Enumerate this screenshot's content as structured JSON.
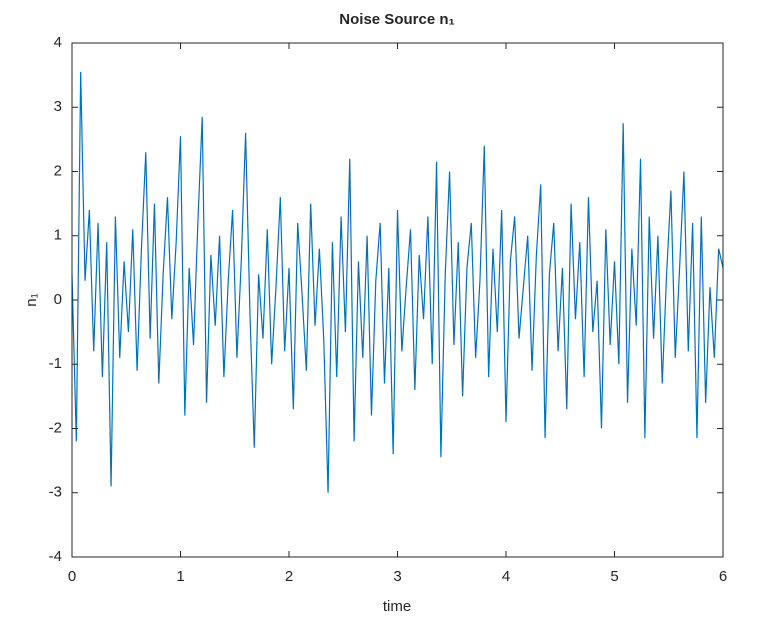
{
  "chart_data": {
    "type": "line",
    "title": "Noise Source n₁",
    "xlabel": "time",
    "ylabel": "n₁",
    "xlim": [
      0,
      6
    ],
    "ylim": [
      -4,
      4
    ],
    "xticks": [
      0,
      1,
      2,
      3,
      4,
      5,
      6
    ],
    "yticks": [
      -4,
      -3,
      -2,
      -1,
      0,
      1,
      2,
      3,
      4
    ],
    "x": [
      0,
      0.04,
      0.08,
      0.12,
      0.16,
      0.2,
      0.24,
      0.28,
      0.32,
      0.36,
      0.4,
      0.44,
      0.48,
      0.52,
      0.56,
      0.6,
      0.64,
      0.68,
      0.72,
      0.76,
      0.8,
      0.84,
      0.88,
      0.92,
      0.96,
      1,
      1.04,
      1.08,
      1.12,
      1.16,
      1.2,
      1.24,
      1.28,
      1.32,
      1.36,
      1.4,
      1.44,
      1.48,
      1.52,
      1.56,
      1.6,
      1.64,
      1.68,
      1.72,
      1.76,
      1.8,
      1.84,
      1.88,
      1.92,
      1.96,
      2,
      2.04,
      2.08,
      2.12,
      2.16,
      2.2,
      2.24,
      2.28,
      2.32,
      2.36,
      2.4,
      2.44,
      2.48,
      2.52,
      2.56,
      2.6,
      2.64,
      2.68,
      2.72,
      2.76,
      2.8,
      2.84,
      2.88,
      2.92,
      2.96,
      3,
      3.04,
      3.08,
      3.12,
      3.16,
      3.2,
      3.24,
      3.28,
      3.32,
      3.36,
      3.4,
      3.44,
      3.48,
      3.52,
      3.56,
      3.6,
      3.64,
      3.68,
      3.72,
      3.76,
      3.8,
      3.84,
      3.88,
      3.92,
      3.96,
      4,
      4.04,
      4.08,
      4.12,
      4.16,
      4.2,
      4.24,
      4.28,
      4.32,
      4.36,
      4.4,
      4.44,
      4.48,
      4.52,
      4.56,
      4.6,
      4.64,
      4.68,
      4.72,
      4.76,
      4.8,
      4.84,
      4.88,
      4.92,
      4.96,
      5,
      5.04,
      5.08,
      5.12,
      5.16,
      5.2,
      5.24,
      5.28,
      5.32,
      5.36,
      5.4,
      5.44,
      5.48,
      5.52,
      5.56,
      5.6,
      5.64,
      5.68,
      5.72,
      5.76,
      5.8,
      5.84,
      5.88,
      5.92,
      5.96,
      6
    ],
    "series": [
      {
        "color": "#0072bd",
        "values": [
          0.4,
          -2.2,
          3.55,
          0.3,
          1.4,
          -0.8,
          1.2,
          -1.2,
          0.9,
          -2.9,
          1.3,
          -0.9,
          0.6,
          -0.5,
          1.1,
          -1.1,
          0.8,
          2.3,
          -0.6,
          1.5,
          -1.3,
          0.4,
          1.6,
          -0.3,
          0.9,
          2.55,
          -1.8,
          0.5,
          -0.7,
          1.2,
          2.85,
          -1.6,
          0.7,
          -0.4,
          1.0,
          -1.2,
          0.3,
          1.4,
          -0.9,
          0.6,
          2.6,
          -0.2,
          -2.3,
          0.4,
          -0.6,
          1.1,
          -1.0,
          0.2,
          1.6,
          -0.8,
          0.5,
          -1.7,
          1.2,
          0.1,
          -1.1,
          1.5,
          -0.4,
          0.8,
          -0.6,
          -3.0,
          0.9,
          -1.2,
          1.3,
          -0.5,
          2.2,
          -2.2,
          0.6,
          -0.9,
          1.0,
          -1.8,
          0.3,
          1.2,
          -1.3,
          0.5,
          -2.4,
          1.4,
          -0.8,
          0.2,
          1.1,
          -1.4,
          0.7,
          -0.3,
          1.3,
          -1.0,
          2.15,
          -2.45,
          0.4,
          2.0,
          -0.7,
          0.9,
          -1.5,
          0.5,
          1.2,
          -0.9,
          0.3,
          2.4,
          -1.2,
          0.8,
          -0.5,
          1.4,
          -1.9,
          0.6,
          1.3,
          -0.6,
          0.2,
          1.0,
          -1.1,
          0.7,
          1.8,
          -2.15,
          0.4,
          1.2,
          -0.8,
          0.5,
          -1.7,
          1.5,
          -0.3,
          0.9,
          -1.2,
          1.6,
          -0.5,
          0.3,
          -2.0,
          1.1,
          -0.7,
          0.6,
          -1.0,
          2.75,
          -1.6,
          0.8,
          -0.4,
          2.2,
          -2.15,
          1.3,
          -0.6,
          1.0,
          -1.3,
          0.4,
          1.7,
          -0.9,
          0.5,
          2.0,
          -0.8,
          1.2,
          -2.15,
          1.3,
          -1.6,
          0.2,
          -0.9,
          0.8,
          0.5
        ]
      }
    ]
  }
}
